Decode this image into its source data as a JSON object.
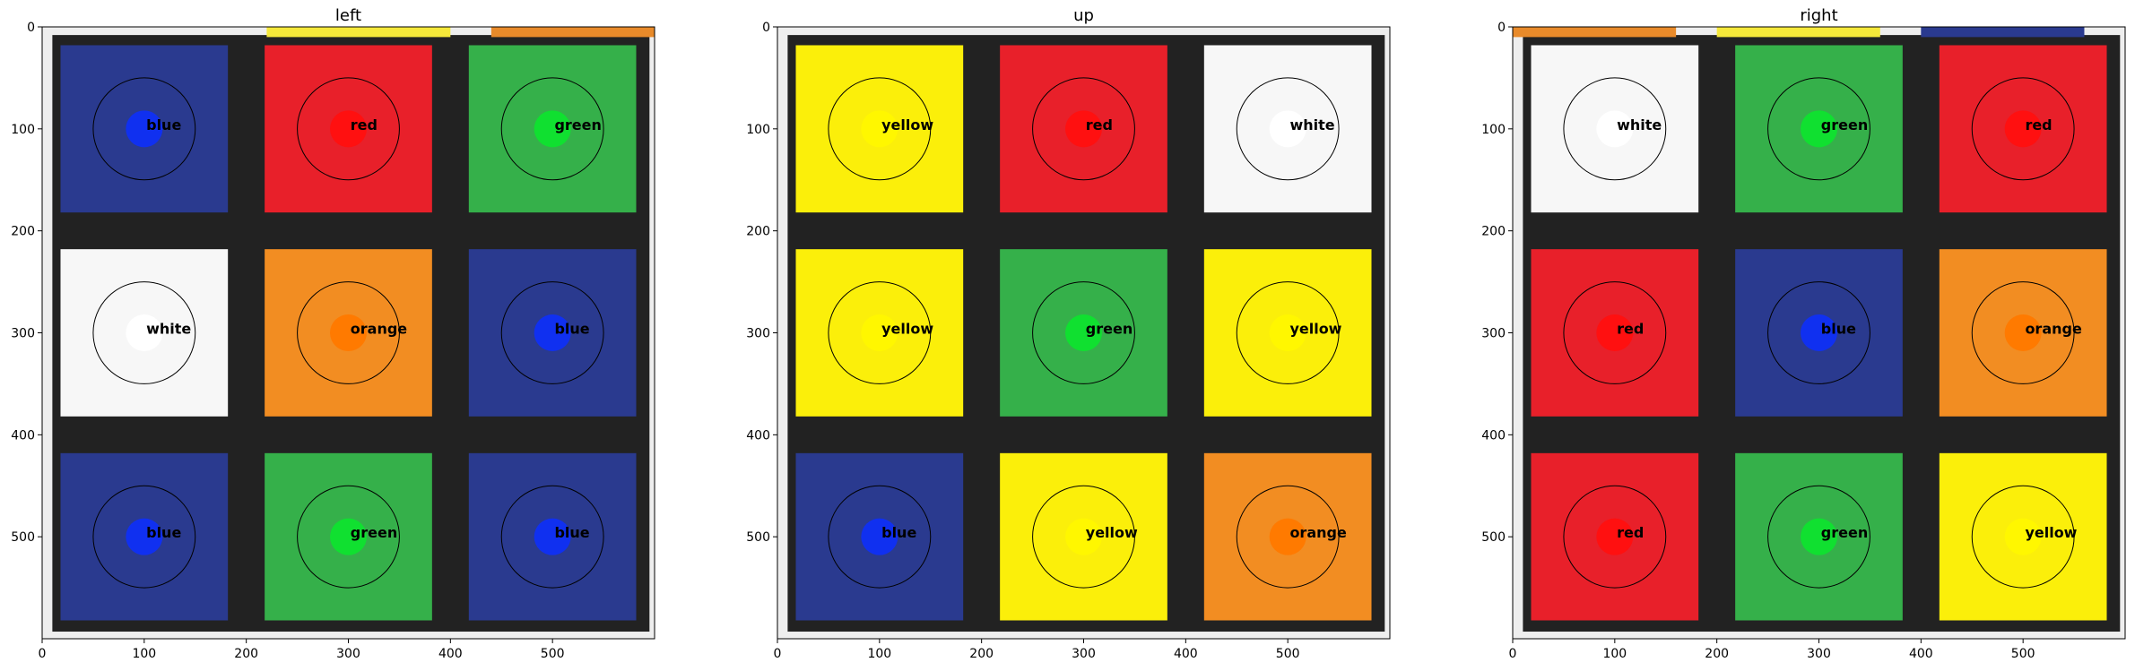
{
  "chart_data": [
    {
      "type": "heatmap",
      "title": "left",
      "xlim": [
        0,
        600
      ],
      "ylim": [
        600,
        0
      ],
      "xticks": [
        0,
        100,
        200,
        300,
        400,
        500
      ],
      "yticks": [
        0,
        100,
        200,
        300,
        400,
        500
      ],
      "edge_strips": [
        {
          "side": "top",
          "start": 220,
          "end": 400,
          "color": "#f5e83a"
        },
        {
          "side": "top",
          "start": 440,
          "end": 600,
          "color": "#e88a2a"
        }
      ],
      "stickers": [
        {
          "row": 0,
          "col": 0,
          "label": "blue",
          "color": "#2a3a8f",
          "dot": "#1030f0"
        },
        {
          "row": 0,
          "col": 1,
          "label": "red",
          "color": "#e8202a",
          "dot": "#ff1010"
        },
        {
          "row": 0,
          "col": 2,
          "label": "green",
          "color": "#35b04a",
          "dot": "#10e030"
        },
        {
          "row": 1,
          "col": 0,
          "label": "white",
          "color": "#f7f7f7",
          "dot": "#ffffff"
        },
        {
          "row": 1,
          "col": 1,
          "label": "orange",
          "color": "#f28d22",
          "dot": "#ff7a00"
        },
        {
          "row": 1,
          "col": 2,
          "label": "blue",
          "color": "#2a3a8f",
          "dot": "#1030f0"
        },
        {
          "row": 2,
          "col": 0,
          "label": "blue",
          "color": "#2a3a8f",
          "dot": "#1030f0"
        },
        {
          "row": 2,
          "col": 1,
          "label": "green",
          "color": "#35b04a",
          "dot": "#10e030"
        },
        {
          "row": 2,
          "col": 2,
          "label": "blue",
          "color": "#2a3a8f",
          "dot": "#1030f0"
        }
      ]
    },
    {
      "type": "heatmap",
      "title": "up",
      "xlim": [
        0,
        600
      ],
      "ylim": [
        600,
        0
      ],
      "xticks": [
        0,
        100,
        200,
        300,
        400,
        500
      ],
      "yticks": [
        0,
        100,
        200,
        300,
        400,
        500
      ],
      "edge_strips": [],
      "stickers": [
        {
          "row": 0,
          "col": 0,
          "label": "yellow",
          "color": "#fbef0a",
          "dot": "#fff700"
        },
        {
          "row": 0,
          "col": 1,
          "label": "red",
          "color": "#e8202a",
          "dot": "#ff1010"
        },
        {
          "row": 0,
          "col": 2,
          "label": "white",
          "color": "#f7f7f7",
          "dot": "#ffffff"
        },
        {
          "row": 1,
          "col": 0,
          "label": "yellow",
          "color": "#fbef0a",
          "dot": "#fff700"
        },
        {
          "row": 1,
          "col": 1,
          "label": "green",
          "color": "#35b04a",
          "dot": "#10e030"
        },
        {
          "row": 1,
          "col": 2,
          "label": "yellow",
          "color": "#fbef0a",
          "dot": "#fff700"
        },
        {
          "row": 2,
          "col": 0,
          "label": "blue",
          "color": "#2a3a8f",
          "dot": "#1030f0"
        },
        {
          "row": 2,
          "col": 1,
          "label": "yellow",
          "color": "#fbef0a",
          "dot": "#fff700"
        },
        {
          "row": 2,
          "col": 2,
          "label": "orange",
          "color": "#f28d22",
          "dot": "#ff7a00"
        }
      ]
    },
    {
      "type": "heatmap",
      "title": "right",
      "xlim": [
        0,
        600
      ],
      "ylim": [
        600,
        0
      ],
      "xticks": [
        0,
        100,
        200,
        300,
        400,
        500
      ],
      "yticks": [
        0,
        100,
        200,
        300,
        400,
        500
      ],
      "edge_strips": [
        {
          "side": "top",
          "start": 0,
          "end": 160,
          "color": "#e88a2a"
        },
        {
          "side": "top",
          "start": 200,
          "end": 360,
          "color": "#f5e83a"
        },
        {
          "side": "top",
          "start": 400,
          "end": 560,
          "color": "#2a3a8f"
        }
      ],
      "stickers": [
        {
          "row": 0,
          "col": 0,
          "label": "white",
          "color": "#f7f7f7",
          "dot": "#ffffff"
        },
        {
          "row": 0,
          "col": 1,
          "label": "green",
          "color": "#35b04a",
          "dot": "#10e030"
        },
        {
          "row": 0,
          "col": 2,
          "label": "red",
          "color": "#e8202a",
          "dot": "#ff1010"
        },
        {
          "row": 1,
          "col": 0,
          "label": "red",
          "color": "#e8202a",
          "dot": "#ff1010"
        },
        {
          "row": 1,
          "col": 1,
          "label": "blue",
          "color": "#2a3a8f",
          "dot": "#1030f0"
        },
        {
          "row": 1,
          "col": 2,
          "label": "orange",
          "color": "#f28d22",
          "dot": "#ff7a00"
        },
        {
          "row": 2,
          "col": 0,
          "label": "red",
          "color": "#e8202a",
          "dot": "#ff1010"
        },
        {
          "row": 2,
          "col": 1,
          "label": "green",
          "color": "#35b04a",
          "dot": "#10e030"
        },
        {
          "row": 2,
          "col": 2,
          "label": "yellow",
          "color": "#fbef0a",
          "dot": "#fff700"
        }
      ]
    }
  ],
  "colors": {
    "frame": "#222222",
    "background": "#ffffff",
    "circle_outline": "#000000"
  }
}
